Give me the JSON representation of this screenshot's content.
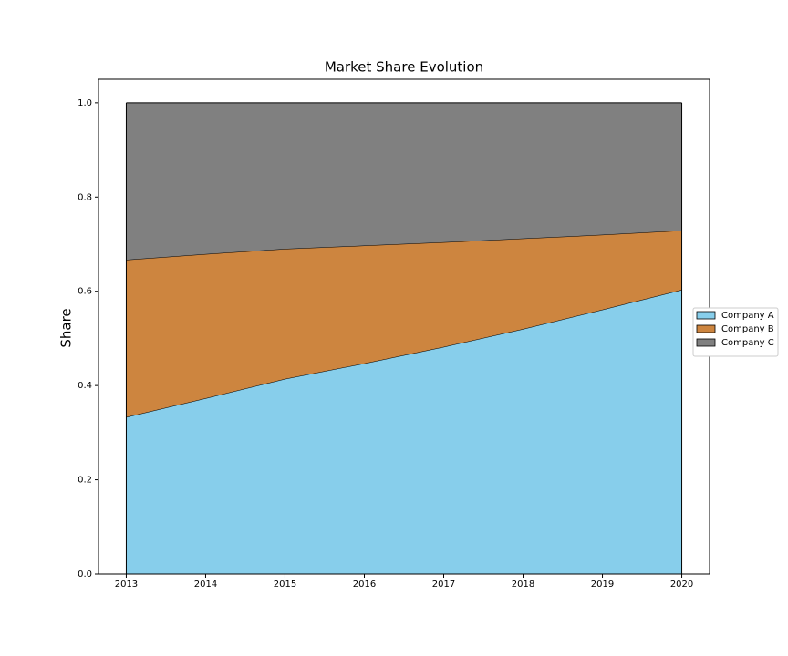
{
  "chart_data": {
    "type": "stacked_area",
    "title": "Market Share Evolution",
    "y_label": "Share",
    "x": [
      2013,
      2014,
      2015,
      2016,
      2017,
      2018,
      2019,
      2020
    ],
    "series": [
      {
        "name": "Company A",
        "color": "#87ceeb",
        "values": [
          0.333,
          0.373,
          0.414,
          0.447,
          0.482,
          0.52,
          0.561,
          0.603
        ]
      },
      {
        "name": "Company B",
        "color": "#cd853f",
        "values": [
          0.334,
          0.306,
          0.276,
          0.25,
          0.222,
          0.192,
          0.159,
          0.126
        ]
      },
      {
        "name": "Company C",
        "color": "#808080",
        "values": [
          0.333,
          0.321,
          0.31,
          0.303,
          0.296,
          0.288,
          0.28,
          0.271
        ]
      }
    ],
    "xlim": [
      2012.65,
      2020.35
    ],
    "xticks": [
      2013,
      2014,
      2015,
      2016,
      2017,
      2018,
      2019,
      2020
    ],
    "ylim": [
      0,
      1.05
    ],
    "yticks": [
      {
        "value": 0,
        "label": "0.0"
      },
      0.2,
      0.4,
      0.6,
      0.8,
      {
        "value": 1,
        "label": "1.0"
      }
    ],
    "edge_color": "#000000",
    "legend": "right"
  }
}
